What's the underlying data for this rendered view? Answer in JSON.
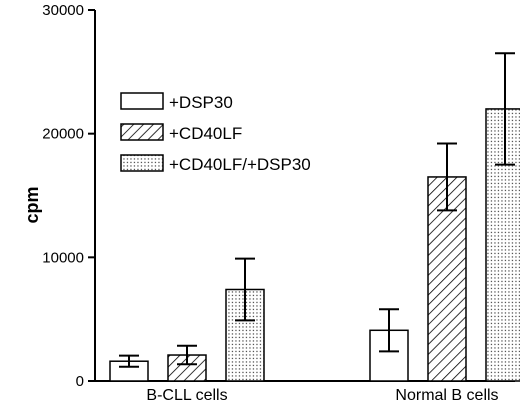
{
  "chart_data": {
    "type": "bar",
    "title": "",
    "xlabel": "",
    "ylabel": "cpm",
    "ylim": [
      0,
      30000
    ],
    "yticks": [
      0,
      10000,
      20000,
      30000
    ],
    "yticks_label": [
      "0",
      "10000",
      "20000",
      "30000"
    ],
    "grid": false,
    "legend_position": "top-left",
    "categories": [
      "B-CLL cells",
      "Normal B cells"
    ],
    "series": [
      {
        "name": "+DSP30",
        "pattern": "solid-white",
        "values": [
          1600,
          4100
        ],
        "errors": [
          450,
          1700
        ]
      },
      {
        "name": "+CD40LF",
        "pattern": "hatched",
        "values": [
          2100,
          16500
        ],
        "errors": [
          750,
          2700
        ]
      },
      {
        "name": "+CD40LF/+DSP30",
        "pattern": "dotted",
        "values": [
          7400,
          22000
        ],
        "errors": [
          2500,
          4500
        ]
      }
    ]
  }
}
